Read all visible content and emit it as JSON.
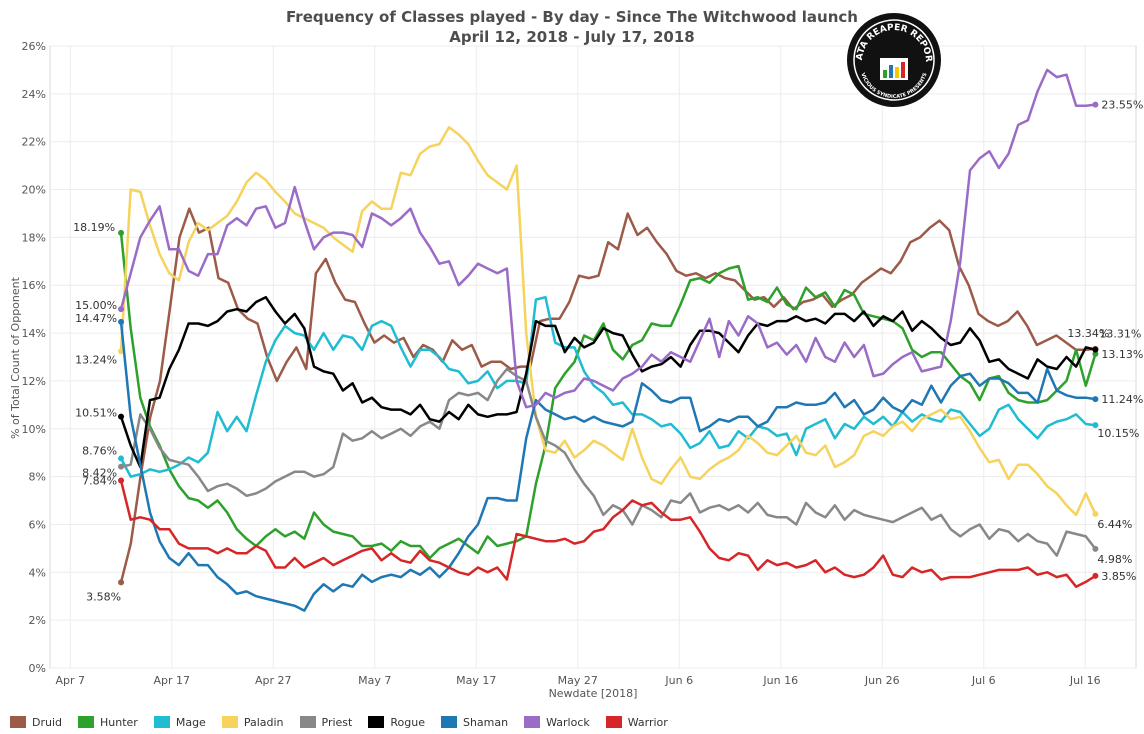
{
  "chart_data": {
    "type": "line",
    "title": "Frequency of Classes played - By day - Since The Witchwood launch",
    "subtitle": "April 12, 2018 - July 17, 2018",
    "xlabel": "Newdate [2018]",
    "ylabel": "% of Total Count of Opponent",
    "x_start": "2018-04-12",
    "x_end": "2018-07-17",
    "xlim": [
      "2018-04-05",
      "2018-07-21"
    ],
    "ylim": [
      0,
      26
    ],
    "x_ticks": [
      {
        "date": "2018-04-07",
        "label": "Apr 7"
      },
      {
        "date": "2018-04-17",
        "label": "Apr 17"
      },
      {
        "date": "2018-04-27",
        "label": "Apr 27"
      },
      {
        "date": "2018-05-07",
        "label": "May 7"
      },
      {
        "date": "2018-05-17",
        "label": "May 17"
      },
      {
        "date": "2018-05-27",
        "label": "May 27"
      },
      {
        "date": "2018-06-06",
        "label": "Jun 6"
      },
      {
        "date": "2018-06-16",
        "label": "Jun 16"
      },
      {
        "date": "2018-06-26",
        "label": "Jun 26"
      },
      {
        "date": "2018-07-06",
        "label": "Jul 6"
      },
      {
        "date": "2018-07-16",
        "label": "Jul 16"
      }
    ],
    "y_ticks": [
      "0%",
      "2%",
      "4%",
      "6%",
      "8%",
      "10%",
      "12%",
      "14%",
      "16%",
      "18%",
      "20%",
      "22%",
      "24%",
      "26%"
    ],
    "grid": true,
    "legend": "bottom",
    "series": [
      {
        "name": "Druid",
        "color": "#9c5b48",
        "start_label": "3.58%",
        "end_label": "13.34%",
        "values": [
          3.58,
          5.2,
          8.0,
          10.5,
          12.0,
          15.0,
          18.0,
          19.2,
          18.2,
          18.4,
          16.3,
          16.1,
          15.0,
          14.6,
          14.4,
          13.0,
          12.0,
          12.8,
          13.4,
          12.5,
          16.5,
          17.1,
          16.1,
          15.4,
          15.3,
          14.4,
          13.6,
          13.9,
          13.6,
          13.8,
          13.0,
          13.5,
          13.3,
          12.8,
          13.7,
          13.3,
          13.5,
          12.6,
          12.8,
          12.8,
          12.5,
          12.6,
          12.6,
          14.5,
          14.6,
          14.6,
          15.3,
          16.4,
          16.3,
          16.4,
          17.8,
          17.5,
          19.0,
          18.1,
          18.4,
          17.8,
          17.3,
          16.6,
          16.4,
          16.5,
          16.3,
          16.5,
          16.3,
          16.2,
          15.8,
          15.4,
          15.5,
          15.1,
          15.5,
          15.0,
          15.3,
          15.4,
          15.6,
          15.1,
          15.4,
          15.6,
          16.1,
          16.4,
          16.7,
          16.5,
          17.0,
          17.8,
          18.0,
          18.4,
          18.7,
          18.3,
          16.8,
          16.0,
          14.8,
          14.5,
          14.3,
          14.5,
          14.9,
          14.3,
          13.5,
          13.7,
          13.9,
          13.6,
          13.3,
          13.3,
          13.34
        ]
      },
      {
        "name": "Hunter",
        "color": "#2ea02c",
        "start_label": "18.19%",
        "end_label": "13.13%",
        "values": [
          18.19,
          14.2,
          11.3,
          10.1,
          9.3,
          8.3,
          7.6,
          7.1,
          7.0,
          6.7,
          7.0,
          6.5,
          5.8,
          5.4,
          5.1,
          5.5,
          5.8,
          5.5,
          5.7,
          5.4,
          6.5,
          6.0,
          5.7,
          5.6,
          5.5,
          5.1,
          5.1,
          5.2,
          4.9,
          5.3,
          5.1,
          5.1,
          4.6,
          5.0,
          5.2,
          5.4,
          5.1,
          4.8,
          5.5,
          5.1,
          5.2,
          5.3,
          5.5,
          7.7,
          9.3,
          11.7,
          12.3,
          12.8,
          13.9,
          13.7,
          14.4,
          13.3,
          12.9,
          13.5,
          13.7,
          14.4,
          14.3,
          14.3,
          15.2,
          16.2,
          16.3,
          16.1,
          16.5,
          16.7,
          16.8,
          15.4,
          15.5,
          15.3,
          15.9,
          15.2,
          15.0,
          15.9,
          15.5,
          15.7,
          15.1,
          15.8,
          15.6,
          14.8,
          14.7,
          14.6,
          14.5,
          14.2,
          13.3,
          13.0,
          13.2,
          13.2,
          12.7,
          12.2,
          11.9,
          11.2,
          12.1,
          12.2,
          11.5,
          11.2,
          11.1,
          11.1,
          11.2,
          11.6,
          12.0,
          13.3,
          11.8,
          13.13
        ]
      },
      {
        "name": "Mage",
        "color": "#1fbcd2",
        "start_label": "8.76%",
        "end_label": "10.15%",
        "values": [
          8.76,
          8.0,
          8.1,
          8.3,
          8.2,
          8.3,
          8.5,
          8.8,
          8.6,
          9.0,
          10.7,
          9.9,
          10.5,
          9.9,
          11.4,
          12.8,
          13.7,
          14.3,
          14.0,
          13.9,
          13.3,
          14.0,
          13.3,
          13.9,
          13.8,
          13.3,
          14.3,
          14.5,
          14.3,
          13.4,
          12.6,
          13.3,
          13.3,
          13.0,
          12.5,
          12.4,
          11.9,
          12.0,
          12.4,
          11.7,
          12.0,
          12.0,
          11.9,
          15.4,
          15.5,
          13.6,
          13.4,
          13.4,
          12.4,
          11.8,
          11.5,
          11.0,
          11.1,
          10.6,
          10.6,
          10.4,
          10.1,
          10.2,
          9.8,
          9.2,
          9.4,
          9.9,
          9.2,
          9.3,
          9.9,
          9.6,
          10.1,
          10.0,
          9.7,
          9.8,
          8.9,
          10.0,
          10.2,
          10.4,
          9.6,
          10.2,
          10.0,
          10.5,
          10.2,
          10.5,
          10.1,
          10.7,
          10.3,
          10.6,
          10.4,
          10.3,
          10.8,
          10.7,
          10.2,
          9.7,
          10.0,
          10.8,
          11.0,
          10.4,
          10.0,
          9.6,
          10.1,
          10.3,
          10.4,
          10.6,
          10.2,
          10.15
        ]
      },
      {
        "name": "Paladin",
        "color": "#f5d35c",
        "start_label": "13.24%",
        "end_label": "6.44%",
        "values": [
          13.24,
          20.0,
          19.9,
          18.5,
          17.3,
          16.5,
          16.2,
          17.8,
          18.6,
          18.3,
          18.6,
          18.9,
          19.5,
          20.3,
          20.7,
          20.4,
          19.9,
          19.5,
          19.0,
          18.8,
          18.6,
          18.4,
          18.0,
          17.7,
          17.4,
          19.1,
          19.5,
          19.2,
          19.2,
          20.7,
          20.6,
          21.5,
          21.8,
          21.9,
          22.6,
          22.3,
          21.9,
          21.2,
          20.6,
          20.3,
          20.0,
          21.0,
          14.0,
          10.5,
          9.1,
          9.0,
          9.5,
          8.8,
          9.1,
          9.5,
          9.3,
          9.0,
          8.7,
          10.0,
          8.8,
          7.9,
          7.7,
          8.3,
          8.8,
          8.0,
          7.9,
          8.3,
          8.6,
          8.8,
          9.1,
          9.7,
          9.4,
          9.0,
          8.9,
          9.3,
          9.7,
          9.0,
          8.9,
          9.3,
          8.4,
          8.6,
          8.9,
          9.7,
          9.9,
          9.7,
          10.1,
          10.3,
          9.9,
          10.4,
          10.6,
          10.8,
          10.4,
          10.5,
          9.9,
          9.2,
          8.6,
          8.7,
          7.9,
          8.5,
          8.5,
          8.1,
          7.6,
          7.3,
          6.8,
          6.4,
          7.3,
          6.44
        ]
      },
      {
        "name": "Priest",
        "color": "#888888",
        "start_label": "8.42%",
        "end_label": "4.98%",
        "values": [
          8.42,
          8.5,
          10.6,
          10.0,
          9.2,
          8.7,
          8.6,
          8.5,
          8.0,
          7.4,
          7.6,
          7.7,
          7.5,
          7.2,
          7.3,
          7.5,
          7.8,
          8.0,
          8.2,
          8.2,
          8.0,
          8.1,
          8.4,
          9.8,
          9.5,
          9.6,
          9.9,
          9.6,
          9.8,
          10.0,
          9.7,
          10.1,
          10.3,
          10.0,
          11.2,
          11.5,
          11.4,
          11.5,
          11.2,
          12.0,
          12.5,
          12.2,
          12.0,
          10.5,
          9.5,
          9.3,
          9.0,
          8.3,
          7.7,
          7.2,
          6.4,
          6.8,
          6.6,
          6.0,
          6.8,
          6.6,
          6.3,
          7.0,
          6.9,
          7.3,
          6.5,
          6.7,
          6.8,
          6.6,
          6.8,
          6.5,
          6.9,
          6.4,
          6.3,
          6.3,
          6.0,
          6.9,
          6.5,
          6.3,
          6.8,
          6.2,
          6.6,
          6.4,
          6.3,
          6.2,
          6.1,
          6.3,
          6.5,
          6.7,
          6.2,
          6.4,
          5.8,
          5.5,
          5.8,
          6.0,
          5.4,
          5.8,
          5.7,
          5.3,
          5.6,
          5.3,
          5.2,
          4.7,
          5.7,
          5.6,
          5.5,
          4.98
        ]
      },
      {
        "name": "Rogue",
        "color": "#000000",
        "start_label": "10.51%",
        "end_label": "13.31%",
        "values": [
          10.51,
          9.3,
          8.4,
          11.2,
          11.3,
          12.5,
          13.3,
          14.4,
          14.4,
          14.3,
          14.5,
          14.9,
          15.0,
          14.9,
          15.3,
          15.5,
          14.9,
          14.4,
          14.8,
          14.2,
          12.6,
          12.4,
          12.3,
          11.6,
          11.9,
          11.1,
          11.3,
          10.9,
          10.8,
          10.8,
          10.6,
          11.0,
          10.4,
          10.3,
          10.7,
          10.4,
          11.0,
          10.6,
          10.5,
          10.6,
          10.6,
          10.7,
          12.3,
          14.5,
          14.3,
          14.3,
          13.2,
          13.8,
          13.4,
          13.6,
          14.2,
          14.0,
          13.9,
          13.1,
          12.4,
          12.6,
          12.7,
          13.0,
          12.6,
          13.5,
          14.1,
          14.1,
          14.0,
          13.6,
          13.2,
          13.9,
          14.4,
          14.3,
          14.5,
          14.5,
          14.7,
          14.5,
          14.6,
          14.4,
          14.8,
          14.8,
          14.5,
          14.9,
          14.3,
          14.7,
          14.5,
          14.9,
          14.1,
          14.5,
          14.2,
          13.8,
          13.5,
          13.6,
          14.2,
          13.7,
          12.8,
          12.9,
          12.5,
          12.3,
          12.1,
          12.9,
          12.6,
          12.5,
          13.0,
          12.6,
          13.4,
          13.31
        ]
      },
      {
        "name": "Shaman",
        "color": "#1f77b4",
        "start_label": "14.47%",
        "end_label": "11.24%",
        "values": [
          14.47,
          10.5,
          8.5,
          6.5,
          5.3,
          4.6,
          4.3,
          4.8,
          4.3,
          4.3,
          3.8,
          3.5,
          3.1,
          3.2,
          3.0,
          2.9,
          2.8,
          2.7,
          2.6,
          2.4,
          3.1,
          3.5,
          3.2,
          3.5,
          3.4,
          3.9,
          3.6,
          3.8,
          3.9,
          3.8,
          4.1,
          3.9,
          4.2,
          3.8,
          4.2,
          4.8,
          5.5,
          6.0,
          7.1,
          7.1,
          7.0,
          7.0,
          9.6,
          11.2,
          10.8,
          10.6,
          10.4,
          10.5,
          10.3,
          10.5,
          10.3,
          10.2,
          10.1,
          10.3,
          11.9,
          11.6,
          11.2,
          11.1,
          11.3,
          11.3,
          9.9,
          10.1,
          10.4,
          10.3,
          10.5,
          10.5,
          10.1,
          10.3,
          10.9,
          10.9,
          11.1,
          11.0,
          11.0,
          11.1,
          11.5,
          10.9,
          11.2,
          10.6,
          10.8,
          11.3,
          10.9,
          10.7,
          11.2,
          11.0,
          11.8,
          11.1,
          11.8,
          12.2,
          12.3,
          11.8,
          12.1,
          12.1,
          11.9,
          11.5,
          11.5,
          11.1,
          12.5,
          11.6,
          11.4,
          11.3,
          11.3,
          11.24
        ]
      },
      {
        "name": "Warlock",
        "color": "#9b6bc8",
        "start_label": "15.00%",
        "end_label": "23.55%",
        "values": [
          15.0,
          16.5,
          18.0,
          18.7,
          19.3,
          17.5,
          17.5,
          16.6,
          16.4,
          17.3,
          17.3,
          18.5,
          18.8,
          18.5,
          19.2,
          19.3,
          18.4,
          18.6,
          20.1,
          18.7,
          17.5,
          18.0,
          18.2,
          18.2,
          18.1,
          17.6,
          19.0,
          18.8,
          18.5,
          18.8,
          19.2,
          18.2,
          17.6,
          16.9,
          17.0,
          16.0,
          16.4,
          16.9,
          16.7,
          16.5,
          16.7,
          12.0,
          10.9,
          11.0,
          11.5,
          11.3,
          11.5,
          11.6,
          12.1,
          12.0,
          11.8,
          11.6,
          12.1,
          12.3,
          12.6,
          13.1,
          12.8,
          13.2,
          13.0,
          12.8,
          13.7,
          14.6,
          13.0,
          14.5,
          13.9,
          14.7,
          14.4,
          13.4,
          13.6,
          13.1,
          13.5,
          12.8,
          13.8,
          13.0,
          12.8,
          13.6,
          13.0,
          13.5,
          12.2,
          12.3,
          12.7,
          13.0,
          13.2,
          12.4,
          12.5,
          12.6,
          14.5,
          17.0,
          20.8,
          21.3,
          21.6,
          20.9,
          21.5,
          22.7,
          22.9,
          24.1,
          25.0,
          24.7,
          24.8,
          23.5,
          23.5,
          23.55
        ]
      },
      {
        "name": "Warrior",
        "color": "#d62728",
        "start_label": "7.84%",
        "end_label": "3.85%",
        "values": [
          7.84,
          6.2,
          6.3,
          6.2,
          5.8,
          5.8,
          5.2,
          5.0,
          5.0,
          5.0,
          4.8,
          5.0,
          4.8,
          4.8,
          5.1,
          4.9,
          4.2,
          4.2,
          4.6,
          4.2,
          4.4,
          4.6,
          4.3,
          4.5,
          4.7,
          4.9,
          5.0,
          4.5,
          4.8,
          4.5,
          4.4,
          4.9,
          4.5,
          4.4,
          4.2,
          4.0,
          3.9,
          4.2,
          4.0,
          4.2,
          3.7,
          5.6,
          5.5,
          5.4,
          5.3,
          5.3,
          5.4,
          5.2,
          5.3,
          5.7,
          5.8,
          6.3,
          6.6,
          7.0,
          6.8,
          6.9,
          6.5,
          6.2,
          6.2,
          6.3,
          5.7,
          5.0,
          4.6,
          4.5,
          4.8,
          4.7,
          4.1,
          4.5,
          4.3,
          4.4,
          4.2,
          4.3,
          4.5,
          4.0,
          4.2,
          3.9,
          3.8,
          3.9,
          4.2,
          4.7,
          3.9,
          3.8,
          4.2,
          4.0,
          4.1,
          3.7,
          3.8,
          3.8,
          3.8,
          3.9,
          4.0,
          4.1,
          4.1,
          4.1,
          4.2,
          3.9,
          4.0,
          3.8,
          3.9,
          3.4,
          3.6,
          3.85
        ]
      }
    ]
  },
  "logo": {
    "line1": "DATA REAPER REPORT",
    "line2": "VICIOUS SYNDICATE PRESENTS"
  }
}
